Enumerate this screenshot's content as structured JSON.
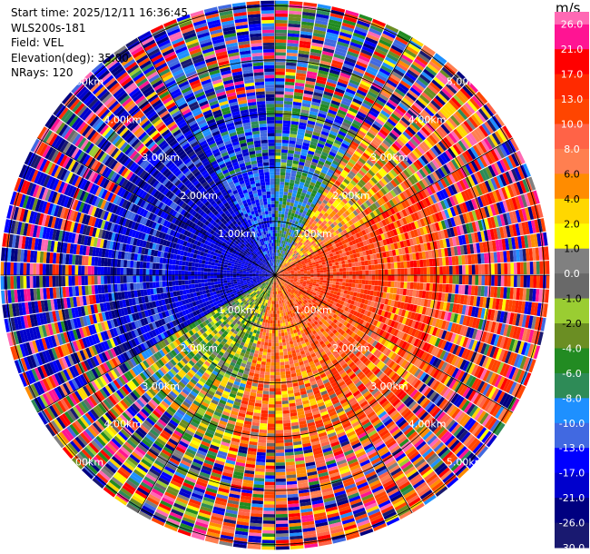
{
  "header": {
    "start_time": "Start time: 2025/12/11 16:36:45",
    "station": "WLS200s-181",
    "field": "Field: VEL",
    "elevation": "Elevation(deg): 35.00",
    "nrays": "NRays: 120"
  },
  "colorbar": {
    "unit": "m/s",
    "ticks": [
      "26.0",
      "21.0",
      "17.0",
      "13.0",
      "10.0",
      "8.0",
      "6.0",
      "4.0",
      "2.0",
      "1.0",
      "0.0",
      "-1.0",
      "-2.0",
      "-4.0",
      "-6.0",
      "-8.0",
      "-10.0",
      "-13.0",
      "-17.0",
      "-21.0",
      "-26.0",
      "-30.0"
    ],
    "colors": [
      "#ff1493",
      "#ff0000",
      "#ff2a00",
      "#ff4500",
      "#ff6347",
      "#ff7f50",
      "#ff8c00",
      "#ffd700",
      "#ffff00",
      "#808080",
      "#696969",
      "#9acd32",
      "#6b8e23",
      "#228b22",
      "#2e8b57",
      "#1e90ff",
      "#4169e1",
      "#0000ff",
      "#0000cd",
      "#000080",
      "#191970"
    ],
    "top_color": "#ff69b4"
  },
  "chart_data": {
    "type": "polar_ppi",
    "field": "VEL",
    "n_rays": 120,
    "range_rings_km": [
      1,
      2,
      3,
      4,
      5
    ],
    "ring_labels": [
      "1.00km",
      "2.00km",
      "3.00km",
      "4.00km",
      "5.00km"
    ],
    "max_range_km": 5.1,
    "value_range": [
      -30,
      30
    ],
    "sector_bias": [
      {
        "az_from": 0,
        "az_to": 30,
        "v": -7
      },
      {
        "az_from": 30,
        "az_to": 60,
        "v": 5
      },
      {
        "az_from": 60,
        "az_to": 120,
        "v": 12
      },
      {
        "az_from": 120,
        "az_to": 150,
        "v": 9
      },
      {
        "az_from": 150,
        "az_to": 195,
        "v": 8
      },
      {
        "az_from": 195,
        "az_to": 240,
        "v": -2
      },
      {
        "az_from": 240,
        "az_to": 300,
        "v": -18
      },
      {
        "az_from": 300,
        "az_to": 330,
        "v": -20
      },
      {
        "az_from": 330,
        "az_to": 360,
        "v": -13
      }
    ]
  }
}
